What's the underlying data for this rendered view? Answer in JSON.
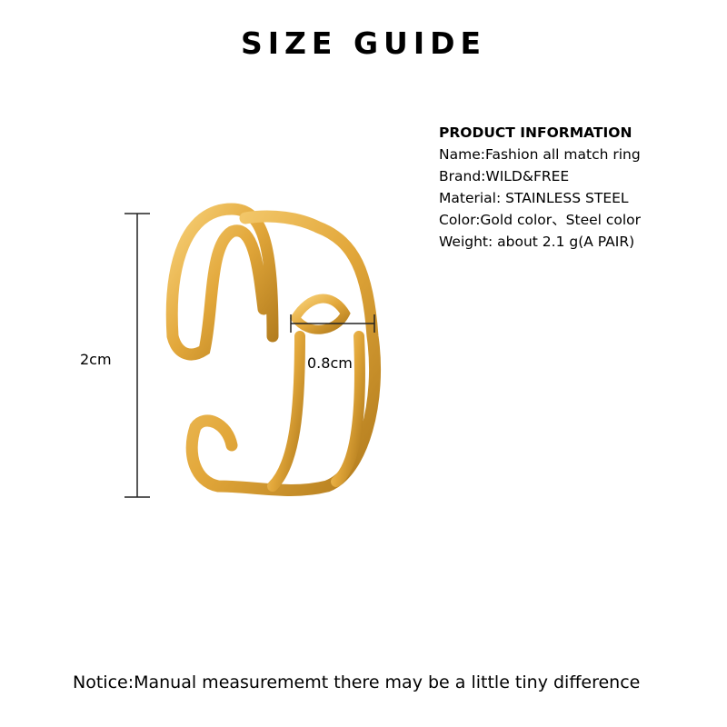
{
  "title": "SIZE GUIDE",
  "product_info": {
    "heading": "PRODUCT INFORMATION",
    "name": "Name:Fashion all match ring",
    "brand": "Brand:WILD&FREE",
    "material": "Material: STAINLESS STEEL",
    "color": "Color:Gold color、Steel color",
    "weight": "Weight: about 2.1 g(A PAIR)"
  },
  "measurements": {
    "height": "2cm",
    "width": "0.8cm"
  },
  "notice": "Notice:Manual measurememt there may be a little tiny difference",
  "colors": {
    "gold": "#e2a73a",
    "gold_light": "#f8d27a",
    "gold_dark": "#b07a1c"
  }
}
